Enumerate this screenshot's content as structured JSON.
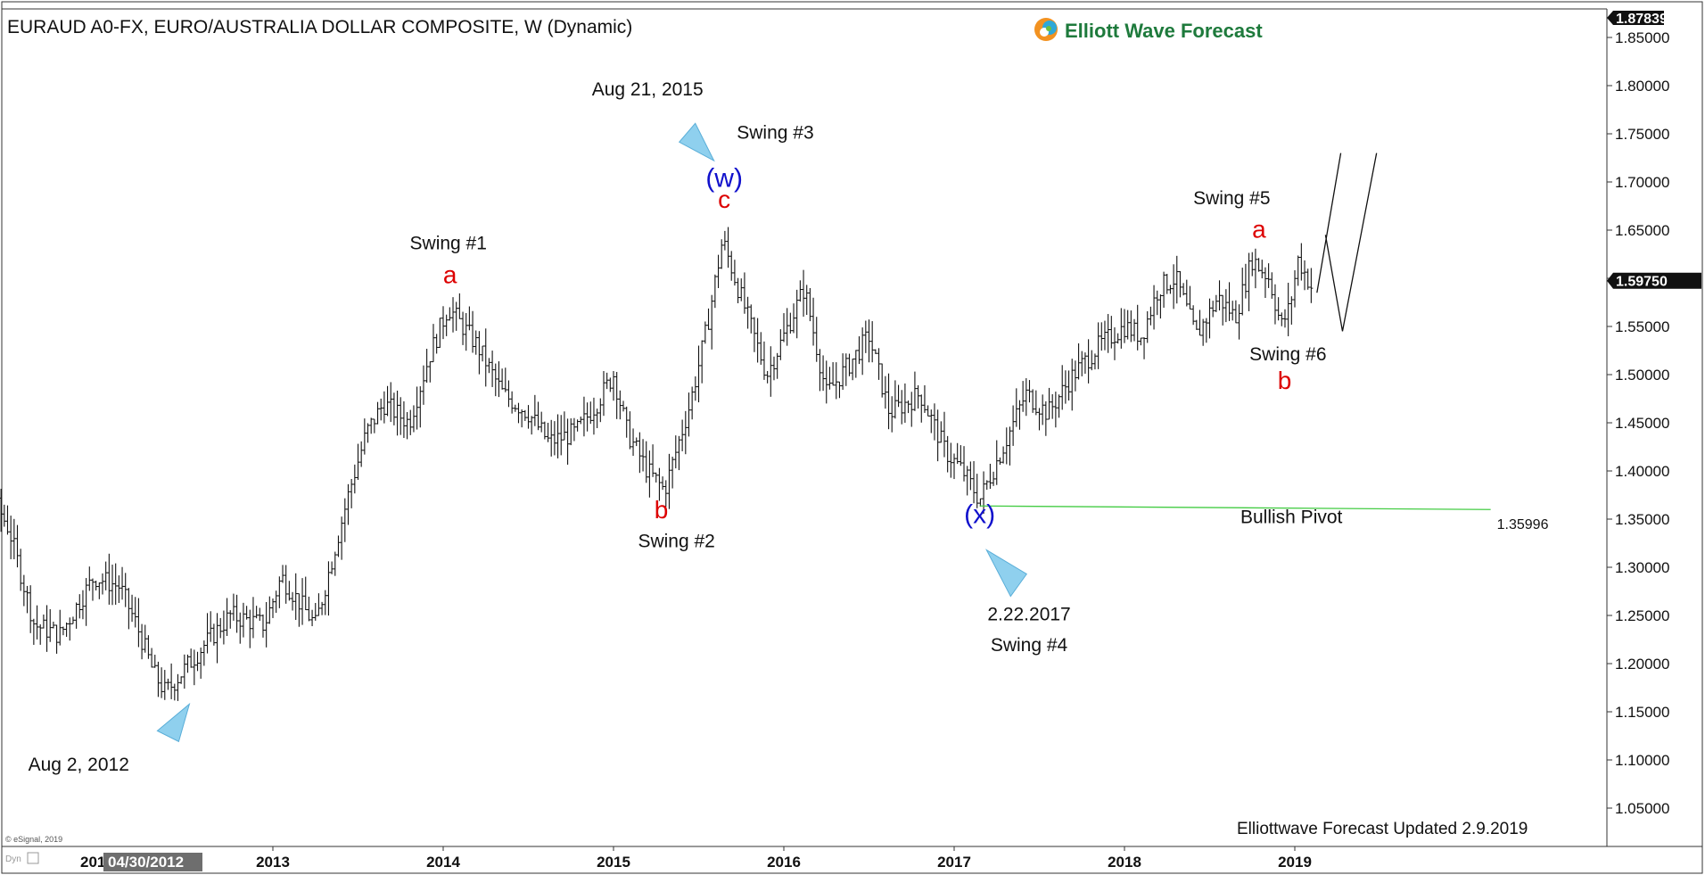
{
  "header": {
    "title": "EURAUD A0-FX, EURO/AUSTRALIA DOLLAR COMPOSITE, W (Dynamic)",
    "brand": "Elliott Wave Forecast",
    "logo_icon": "elliott-wave-logo-icon"
  },
  "footer": {
    "updated": "Elliottwave Forecast Updated 2.9.2019",
    "copyright": "© eSignal, 2019",
    "dyn_label": "Dyn",
    "scroll_label": "04/30/2012",
    "first_year_partial": "201"
  },
  "price_tags": {
    "top": "1.87839",
    "current": "1.59750"
  },
  "colors": {
    "wave_red": "#dd0000",
    "wave_blue": "#1111cc",
    "pivot_green": "#44cc44",
    "arrow_blue": "#8fd0ee",
    "bars": "#111111"
  },
  "chart_data": {
    "type": "ohlc-bar",
    "symbol": "EURAUD",
    "timeframe": "W",
    "ylim": [
      1.0,
      1.87839
    ],
    "y_ticks": [
      "1.05000",
      "1.10000",
      "1.15000",
      "1.20000",
      "1.25000",
      "1.30000",
      "1.35000",
      "1.40000",
      "1.45000",
      "1.50000",
      "1.55000",
      "1.60000",
      "1.65000",
      "1.70000",
      "1.75000",
      "1.80000",
      "1.85000"
    ],
    "x_ticks": [
      {
        "year": 2013,
        "label": "2013"
      },
      {
        "year": 2014,
        "label": "2014"
      },
      {
        "year": 2015,
        "label": "2015"
      },
      {
        "year": 2016,
        "label": "2016"
      },
      {
        "year": 2017,
        "label": "2017"
      },
      {
        "year": 2018,
        "label": "2018"
      },
      {
        "year": 2019,
        "label": "2019"
      }
    ],
    "path_keypoints": [
      [
        2011.0,
        1.36
      ],
      [
        2011.15,
        1.34
      ],
      [
        2011.3,
        1.39
      ],
      [
        2011.45,
        1.34
      ],
      [
        2011.6,
        1.24
      ],
      [
        2011.75,
        1.23
      ],
      [
        2011.95,
        1.29
      ],
      [
        2012.1,
        1.28
      ],
      [
        2012.2,
        1.24
      ],
      [
        2012.3,
        1.19
      ],
      [
        2012.37,
        1.17
      ],
      [
        2012.6,
        1.22
      ],
      [
        2012.75,
        1.25
      ],
      [
        2012.95,
        1.24
      ],
      [
        2013.05,
        1.29
      ],
      [
        2013.25,
        1.24
      ],
      [
        2013.45,
        1.38
      ],
      [
        2013.55,
        1.44
      ],
      [
        2013.65,
        1.47
      ],
      [
        2013.8,
        1.45
      ],
      [
        2013.92,
        1.52
      ],
      [
        2014.03,
        1.57
      ],
      [
        2014.2,
        1.53
      ],
      [
        2014.35,
        1.48
      ],
      [
        2014.5,
        1.46
      ],
      [
        2014.62,
        1.43
      ],
      [
        2014.78,
        1.44
      ],
      [
        2014.9,
        1.47
      ],
      [
        2015.0,
        1.5
      ],
      [
        2015.08,
        1.44
      ],
      [
        2015.2,
        1.4
      ],
      [
        2015.3,
        1.38
      ],
      [
        2015.45,
        1.47
      ],
      [
        2015.55,
        1.55
      ],
      [
        2015.64,
        1.64
      ],
      [
        2015.75,
        1.58
      ],
      [
        2015.9,
        1.5
      ],
      [
        2016.0,
        1.54
      ],
      [
        2016.12,
        1.59
      ],
      [
        2016.25,
        1.48
      ],
      [
        2016.38,
        1.51
      ],
      [
        2016.5,
        1.54
      ],
      [
        2016.62,
        1.46
      ],
      [
        2016.8,
        1.48
      ],
      [
        2016.95,
        1.42
      ],
      [
        2017.05,
        1.4
      ],
      [
        2017.15,
        1.37
      ],
      [
        2017.3,
        1.43
      ],
      [
        2017.42,
        1.48
      ],
      [
        2017.55,
        1.46
      ],
      [
        2017.7,
        1.5
      ],
      [
        2017.85,
        1.53
      ],
      [
        2018.0,
        1.55
      ],
      [
        2018.1,
        1.54
      ],
      [
        2018.2,
        1.59
      ],
      [
        2018.3,
        1.6
      ],
      [
        2018.42,
        1.54
      ],
      [
        2018.55,
        1.58
      ],
      [
        2018.65,
        1.56
      ],
      [
        2018.75,
        1.62
      ],
      [
        2018.85,
        1.6
      ],
      [
        2018.92,
        1.55
      ],
      [
        2018.97,
        1.57
      ],
      [
        2019.02,
        1.62
      ],
      [
        2019.1,
        1.59
      ]
    ],
    "projection": [
      [
        2019.13,
        1.585
      ],
      [
        2019.27,
        1.73
      ]
    ],
    "projection_alt": [
      [
        2019.18,
        1.645
      ],
      [
        2019.28,
        1.545
      ],
      [
        2019.48,
        1.73
      ]
    ],
    "pivot": {
      "value": 1.35996,
      "label": "1.35996",
      "x_start": 2017.15,
      "x_end": 2020.15,
      "name": "Bullish Pivot"
    },
    "wave_labels": [
      {
        "text": "a",
        "x": 2014.04,
        "y": 1.595,
        "color": "red"
      },
      {
        "text": "b",
        "x": 2015.28,
        "y": 1.351,
        "color": "red"
      },
      {
        "text": "c",
        "x": 2015.65,
        "y": 1.673,
        "color": "red"
      },
      {
        "text": "(w)",
        "x": 2015.65,
        "y": 1.695,
        "color": "blue"
      },
      {
        "text": "(x)",
        "x": 2017.15,
        "y": 1.346,
        "color": "blue"
      },
      {
        "text": "a",
        "x": 2018.79,
        "y": 1.642,
        "color": "red"
      },
      {
        "text": "b",
        "x": 2018.94,
        "y": 1.485,
        "color": "red"
      }
    ],
    "annotations": [
      {
        "text": "Swing #1",
        "x": 2014.03,
        "y": 1.63
      },
      {
        "text": "Swing #2",
        "x": 2015.37,
        "y": 1.321
      },
      {
        "text": "Aug 21, 2015",
        "x": 2015.2,
        "y": 1.79
      },
      {
        "text": "Swing #3",
        "x": 2015.95,
        "y": 1.745
      },
      {
        "text": "2.22.2017",
        "x": 2017.44,
        "y": 1.245
      },
      {
        "text": "Swing #4",
        "x": 2017.44,
        "y": 1.213
      },
      {
        "text": "Swing #5",
        "x": 2018.63,
        "y": 1.677
      },
      {
        "text": "Swing #6",
        "x": 2018.96,
        "y": 1.515
      },
      {
        "text": "Aug 2, 2012",
        "x": 2011.86,
        "y": 1.089
      },
      {
        "text": "Bullish Pivot",
        "x": 2018.98,
        "y": 1.346
      }
    ],
    "markers": [
      {
        "name": "aug-2012-low-arrow",
        "tip": [
          2012.51,
          1.158
        ],
        "dir": "up"
      },
      {
        "name": "aug-2015-high-arrow",
        "tip": [
          2015.59,
          1.722
        ],
        "dir": "down"
      },
      {
        "name": "feb-2017-low-arrow",
        "tip": [
          2017.19,
          1.318
        ],
        "dir": "up"
      }
    ]
  }
}
